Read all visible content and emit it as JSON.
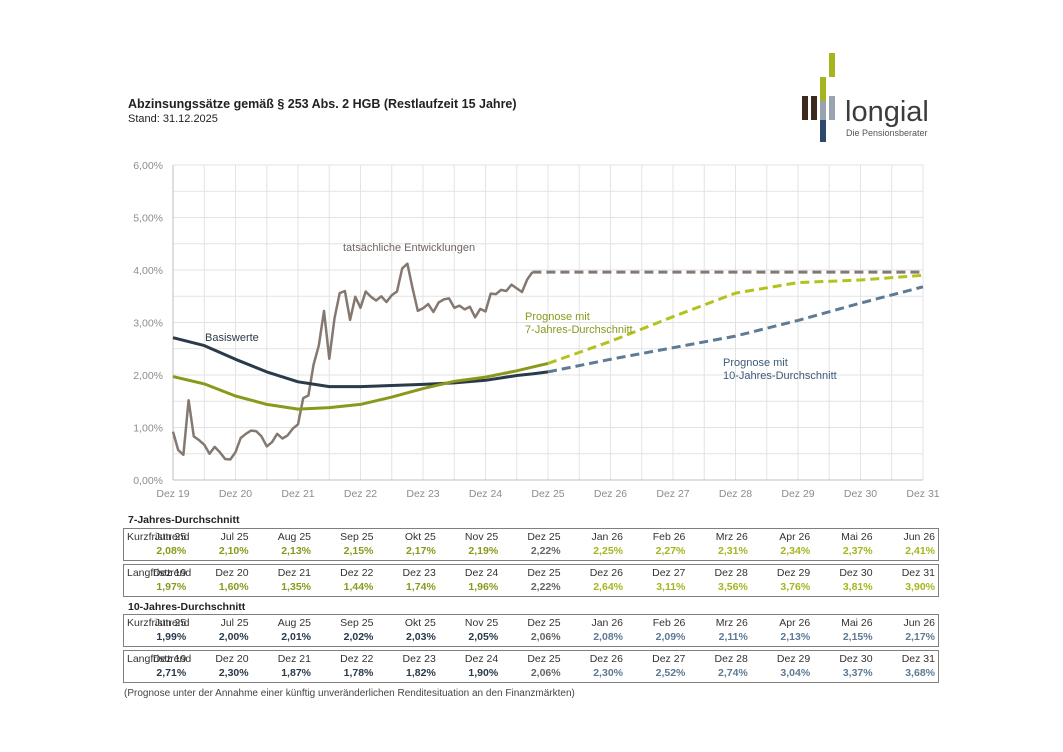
{
  "header": {
    "title": "Abzinsungssätze gemäß § 253 Abs. 2 HGB (Restlaufzeit 15 Jahre)",
    "subtitle": "Stand: 31.12.2025"
  },
  "logo": {
    "name": "longial",
    "tagline": "Die Pensionsberater",
    "colors": {
      "green": "#a6b51d",
      "dark": "#3d2a1e",
      "blue": "#2e4a6b",
      "grey": "#9aa4b0",
      "text": "#3c3c3c"
    }
  },
  "chart_data": {
    "type": "line",
    "ylim": [
      0,
      6
    ],
    "yticks": [
      "0,00%",
      "1,00%",
      "2,00%",
      "3,00%",
      "4,00%",
      "5,00%",
      "6,00%"
    ],
    "xlim": [
      "2019-12",
      "2031-12"
    ],
    "xticks": [
      "Dez 19",
      "Dez 20",
      "Dez 21",
      "Dez 22",
      "Dez 23",
      "Dez 24",
      "Dez 25",
      "Dez 26",
      "Dez 27",
      "Dez 28",
      "Dez 29",
      "Dez 30",
      "Dez 31"
    ],
    "grid": true,
    "annotations": [
      "tatsächliche Entwicklungen",
      "Basiswerte",
      "Prognose mit",
      "7-Jahres-Durchschnitt",
      "Prognose mit",
      "10-Jahres-Durchschnitt"
    ],
    "colors": {
      "actual": "#857870",
      "base10": "#2a3a4a",
      "avg7": "#8a991c",
      "prog7": "#b3c21c",
      "prog10": "#5e7a94"
    },
    "series": [
      {
        "key": "actual",
        "style": "solid",
        "points": [
          [
            "2019-12",
            0.92
          ],
          [
            "2020-01",
            0.57
          ],
          [
            "2020-02",
            0.48
          ],
          [
            "2020-03",
            1.52
          ],
          [
            "2020-04",
            0.83
          ],
          [
            "2020-05",
            0.76
          ],
          [
            "2020-06",
            0.67
          ],
          [
            "2020-07",
            0.5
          ],
          [
            "2020-08",
            0.63
          ],
          [
            "2020-09",
            0.53
          ],
          [
            "2020-10",
            0.4
          ],
          [
            "2020-11",
            0.39
          ],
          [
            "2020-12",
            0.53
          ],
          [
            "2021-01",
            0.8
          ],
          [
            "2021-02",
            0.88
          ],
          [
            "2021-03",
            0.94
          ],
          [
            "2021-04",
            0.93
          ],
          [
            "2021-05",
            0.83
          ],
          [
            "2021-06",
            0.64
          ],
          [
            "2021-07",
            0.72
          ],
          [
            "2021-08",
            0.88
          ],
          [
            "2021-09",
            0.79
          ],
          [
            "2021-10",
            0.85
          ],
          [
            "2021-11",
            0.98
          ],
          [
            "2021-12",
            1.06
          ],
          [
            "2022-01",
            1.56
          ],
          [
            "2022-02",
            1.61
          ],
          [
            "2022-03",
            2.2
          ],
          [
            "2022-04",
            2.56
          ],
          [
            "2022-05",
            3.22
          ],
          [
            "2022-06",
            2.31
          ],
          [
            "2022-07",
            3.08
          ],
          [
            "2022-08",
            3.56
          ],
          [
            "2022-09",
            3.6
          ],
          [
            "2022-10",
            3.05
          ],
          [
            "2022-11",
            3.49
          ],
          [
            "2022-12",
            3.28
          ],
          [
            "2023-01",
            3.59
          ],
          [
            "2023-02",
            3.49
          ],
          [
            "2023-03",
            3.42
          ],
          [
            "2023-04",
            3.5
          ],
          [
            "2023-05",
            3.39
          ],
          [
            "2023-06",
            3.52
          ],
          [
            "2023-07",
            3.59
          ],
          [
            "2023-08",
            4.03
          ],
          [
            "2023-09",
            4.12
          ],
          [
            "2023-10",
            3.65
          ],
          [
            "2023-11",
            3.22
          ],
          [
            "2023-12",
            3.27
          ],
          [
            "2024-01",
            3.35
          ],
          [
            "2024-02",
            3.2
          ],
          [
            "2024-03",
            3.38
          ],
          [
            "2024-04",
            3.44
          ],
          [
            "2024-05",
            3.46
          ],
          [
            "2024-06",
            3.28
          ],
          [
            "2024-07",
            3.32
          ],
          [
            "2024-08",
            3.25
          ],
          [
            "2024-09",
            3.3
          ],
          [
            "2024-10",
            3.1
          ],
          [
            "2024-11",
            3.26
          ],
          [
            "2024-12",
            3.21
          ],
          [
            "2025-01",
            3.55
          ],
          [
            "2025-02",
            3.54
          ],
          [
            "2025-03",
            3.62
          ],
          [
            "2025-04",
            3.6
          ],
          [
            "2025-05",
            3.72
          ],
          [
            "2025-06",
            3.65
          ],
          [
            "2025-07",
            3.58
          ],
          [
            "2025-08",
            3.82
          ],
          [
            "2025-09",
            3.96
          ]
        ]
      },
      {
        "key": "actual",
        "style": "dashed",
        "points": [
          [
            "2025-09",
            3.96
          ],
          [
            "2031-12",
            3.96
          ]
        ]
      },
      {
        "key": "base10",
        "style": "solid",
        "points": [
          [
            "2019-12",
            2.71
          ],
          [
            "2020-06",
            2.56
          ],
          [
            "2020-12",
            2.3
          ],
          [
            "2021-06",
            2.06
          ],
          [
            "2021-12",
            1.87
          ],
          [
            "2022-06",
            1.78
          ],
          [
            "2022-12",
            1.78
          ],
          [
            "2023-06",
            1.8
          ],
          [
            "2023-12",
            1.82
          ],
          [
            "2024-06",
            1.85
          ],
          [
            "2024-12",
            1.9
          ],
          [
            "2025-06",
            1.99
          ],
          [
            "2025-09",
            2.02
          ],
          [
            "2025-12",
            2.06
          ]
        ]
      },
      {
        "key": "avg7",
        "style": "solid",
        "points": [
          [
            "2019-12",
            1.97
          ],
          [
            "2020-06",
            1.83
          ],
          [
            "2020-12",
            1.6
          ],
          [
            "2021-06",
            1.44
          ],
          [
            "2021-12",
            1.35
          ],
          [
            "2022-06",
            1.38
          ],
          [
            "2022-12",
            1.44
          ],
          [
            "2023-06",
            1.58
          ],
          [
            "2023-12",
            1.74
          ],
          [
            "2024-06",
            1.88
          ],
          [
            "2024-12",
            1.96
          ],
          [
            "2025-06",
            2.08
          ],
          [
            "2025-09",
            2.15
          ],
          [
            "2025-12",
            2.22
          ]
        ]
      },
      {
        "key": "prog7",
        "style": "dashed",
        "points": [
          [
            "2025-12",
            2.22
          ],
          [
            "2026-12",
            2.64
          ],
          [
            "2027-12",
            3.11
          ],
          [
            "2028-12",
            3.56
          ],
          [
            "2029-12",
            3.76
          ],
          [
            "2030-12",
            3.81
          ],
          [
            "2031-12",
            3.9
          ]
        ]
      },
      {
        "key": "prog10",
        "style": "dashed",
        "points": [
          [
            "2025-12",
            2.06
          ],
          [
            "2026-12",
            2.3
          ],
          [
            "2027-12",
            2.52
          ],
          [
            "2028-12",
            2.74
          ],
          [
            "2029-12",
            3.04
          ],
          [
            "2030-12",
            3.37
          ],
          [
            "2031-12",
            3.68
          ]
        ]
      }
    ]
  },
  "tables": {
    "avg7_title": "7-Jahres-Durchschnitt",
    "avg10_title": "10-Jahres-Durchschnitt",
    "avg7_short": {
      "label": "Kurzfristtrend",
      "headers": [
        "Jun 25",
        "Jul 25",
        "Aug 25",
        "Sep 25",
        "Okt 25",
        "Nov 25",
        "Dez 25",
        "Jan 26",
        "Feb 26",
        "Mrz 26",
        "Apr 26",
        "Mai 26",
        "Jun 26"
      ],
      "values": [
        "2,08%",
        "2,10%",
        "2,13%",
        "2,15%",
        "2,17%",
        "2,19%",
        "2,22%",
        "2,25%",
        "2,27%",
        "2,31%",
        "2,34%",
        "2,37%",
        "2,41%"
      ]
    },
    "avg7_long": {
      "label": "Langfristtrend",
      "headers": [
        "Dez 19",
        "Dez 20",
        "Dez 21",
        "Dez 22",
        "Dez 23",
        "Dez 24",
        "Dez 25",
        "Dez 26",
        "Dez 27",
        "Dez 28",
        "Dez 29",
        "Dez 30",
        "Dez 31"
      ],
      "values": [
        "1,97%",
        "1,60%",
        "1,35%",
        "1,44%",
        "1,74%",
        "1,96%",
        "2,22%",
        "2,64%",
        "3,11%",
        "3,56%",
        "3,76%",
        "3,81%",
        "3,90%"
      ]
    },
    "avg10_short": {
      "label": "Kurzfristtrend",
      "headers": [
        "Jun 25",
        "Jul 25",
        "Aug 25",
        "Sep 25",
        "Okt 25",
        "Nov 25",
        "Dez 25",
        "Jan 26",
        "Feb 26",
        "Mrz 26",
        "Apr 26",
        "Mai 26",
        "Jun 26"
      ],
      "values": [
        "1,99%",
        "2,00%",
        "2,01%",
        "2,02%",
        "2,03%",
        "2,05%",
        "2,06%",
        "2,08%",
        "2,09%",
        "2,11%",
        "2,13%",
        "2,15%",
        "2,17%"
      ]
    },
    "avg10_long": {
      "label": "Langfristtrend",
      "headers": [
        "Dez 19",
        "Dez 20",
        "Dez 21",
        "Dez 22",
        "Dez 23",
        "Dez 24",
        "Dez 25",
        "Dez 26",
        "Dez 27",
        "Dez 28",
        "Dez 29",
        "Dez 30",
        "Dez 31"
      ],
      "values": [
        "2,71%",
        "2,30%",
        "1,87%",
        "1,78%",
        "1,82%",
        "1,90%",
        "2,06%",
        "2,30%",
        "2,52%",
        "2,74%",
        "3,04%",
        "3,37%",
        "3,68%"
      ]
    },
    "value_colors": {
      "past7": "#8a991c",
      "current": "#666666",
      "future7": "#a6b51d",
      "past10": "#2a3a4a",
      "future10": "#5e7a94"
    }
  },
  "footnote": "(Prognose unter der Annahme einer künftig unveränderlichen Renditesituation an den Finanzmärkten)"
}
